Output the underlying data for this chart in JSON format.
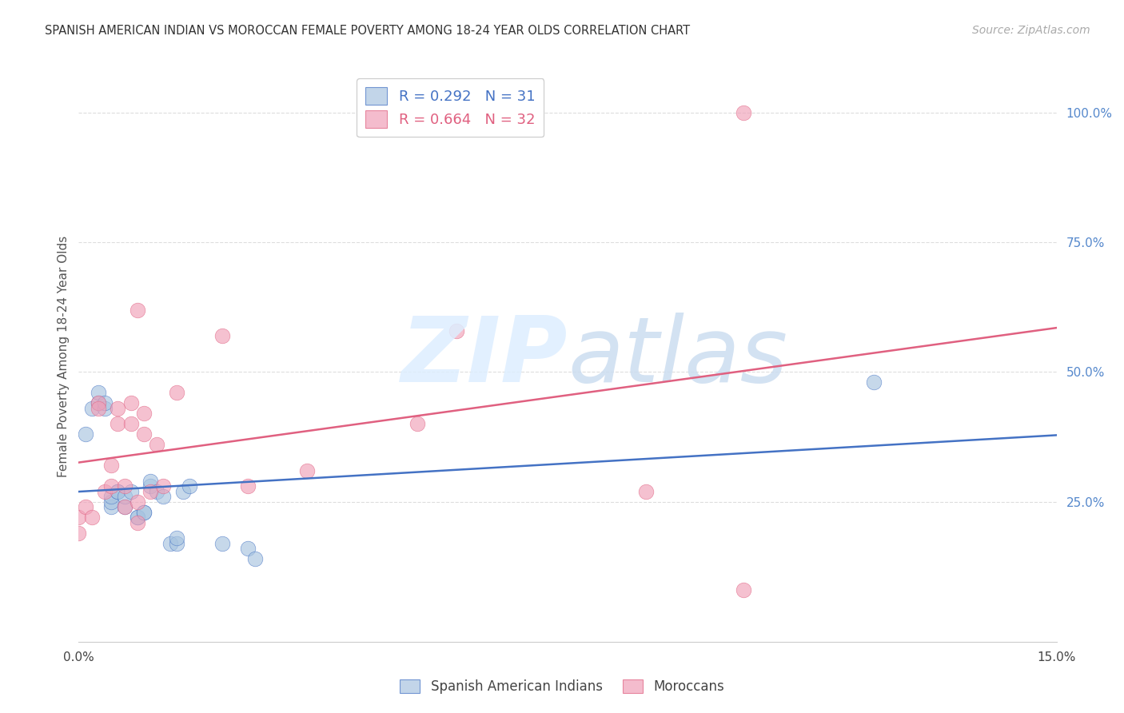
{
  "title": "SPANISH AMERICAN INDIAN VS MOROCCAN FEMALE POVERTY AMONG 18-24 YEAR OLDS CORRELATION CHART",
  "source": "Source: ZipAtlas.com",
  "ylabel": "Female Poverty Among 18-24 Year Olds",
  "blue_label": "Spanish American Indians",
  "pink_label": "Moroccans",
  "blue_R": 0.292,
  "blue_N": 31,
  "pink_R": 0.664,
  "pink_N": 32,
  "blue_color": "#a8c4e0",
  "pink_color": "#f0a0b8",
  "blue_line_color": "#4472c4",
  "pink_line_color": "#e06080",
  "xlim": [
    0.0,
    0.15
  ],
  "ylim": [
    -0.02,
    1.08
  ],
  "blue_x": [
    0.001,
    0.002,
    0.003,
    0.003,
    0.004,
    0.004,
    0.005,
    0.005,
    0.005,
    0.006,
    0.006,
    0.007,
    0.007,
    0.008,
    0.009,
    0.009,
    0.01,
    0.01,
    0.011,
    0.011,
    0.012,
    0.013,
    0.014,
    0.015,
    0.015,
    0.016,
    0.017,
    0.022,
    0.026,
    0.027,
    0.122
  ],
  "blue_y": [
    0.38,
    0.43,
    0.44,
    0.46,
    0.43,
    0.44,
    0.24,
    0.25,
    0.26,
    0.27,
    0.27,
    0.24,
    0.26,
    0.27,
    0.22,
    0.22,
    0.23,
    0.23,
    0.28,
    0.29,
    0.27,
    0.26,
    0.17,
    0.17,
    0.18,
    0.27,
    0.28,
    0.17,
    0.16,
    0.14,
    0.48
  ],
  "pink_x": [
    0.0,
    0.0,
    0.001,
    0.002,
    0.003,
    0.003,
    0.004,
    0.005,
    0.005,
    0.006,
    0.006,
    0.007,
    0.007,
    0.008,
    0.008,
    0.009,
    0.009,
    0.009,
    0.01,
    0.01,
    0.011,
    0.012,
    0.013,
    0.015,
    0.022,
    0.026,
    0.035,
    0.052,
    0.058,
    0.087,
    0.102,
    0.102
  ],
  "pink_y": [
    0.19,
    0.22,
    0.24,
    0.22,
    0.44,
    0.43,
    0.27,
    0.28,
    0.32,
    0.4,
    0.43,
    0.24,
    0.28,
    0.4,
    0.44,
    0.21,
    0.25,
    0.62,
    0.38,
    0.42,
    0.27,
    0.36,
    0.28,
    0.46,
    0.57,
    0.28,
    0.31,
    0.4,
    0.58,
    0.27,
    1.0,
    0.08
  ],
  "xtick_positions": [
    0.0,
    0.03,
    0.06,
    0.09,
    0.12,
    0.15
  ],
  "xtick_labels": [
    "0.0%",
    "",
    "",
    "",
    "",
    "15.0%"
  ],
  "ytick_positions": [
    0.25,
    0.5,
    0.75,
    1.0
  ],
  "ytick_labels": [
    "25.0%",
    "50.0%",
    "75.0%",
    "100.0%"
  ],
  "grid_color": "#dddddd",
  "spine_color": "#cccccc",
  "background": "#ffffff"
}
